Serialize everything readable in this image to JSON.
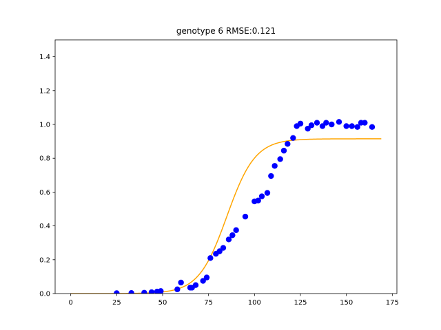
{
  "chart_data": {
    "type": "scatter",
    "title": "genotype 6 RMSE:0.121",
    "xlabel": "",
    "ylabel": "",
    "xlim": [
      -8.5,
      177.5
    ],
    "ylim": [
      0.0,
      1.5
    ],
    "x_ticks": [
      0,
      25,
      50,
      75,
      100,
      125,
      150,
      175
    ],
    "y_ticks": [
      0.0,
      0.2,
      0.4,
      0.6,
      0.8,
      1.0,
      1.2,
      1.4
    ],
    "x_tick_labels": [
      "0",
      "25",
      "50",
      "75",
      "100",
      "125",
      "150",
      "175"
    ],
    "y_tick_labels": [
      "0.0",
      "0.2",
      "0.4",
      "0.6",
      "0.8",
      "1.0",
      "1.2",
      "1.4"
    ],
    "grid": false,
    "legend": null,
    "series": [
      {
        "kind": "points",
        "color": "#0000ff",
        "points": [
          [
            25,
            0.002
          ],
          [
            33,
            0.003
          ],
          [
            40,
            0.005
          ],
          [
            44,
            0.008
          ],
          [
            47,
            0.012
          ],
          [
            49,
            0.015
          ],
          [
            58,
            0.025
          ],
          [
            60,
            0.065
          ],
          [
            65,
            0.035
          ],
          [
            66,
            0.035
          ],
          [
            68,
            0.05
          ],
          [
            72,
            0.075
          ],
          [
            74,
            0.095
          ],
          [
            76,
            0.21
          ],
          [
            79,
            0.235
          ],
          [
            81,
            0.25
          ],
          [
            83,
            0.27
          ],
          [
            86,
            0.32
          ],
          [
            88,
            0.345
          ],
          [
            90,
            0.375
          ],
          [
            95,
            0.455
          ],
          [
            100,
            0.545
          ],
          [
            102,
            0.55
          ],
          [
            104,
            0.575
          ],
          [
            107,
            0.595
          ],
          [
            109,
            0.695
          ],
          [
            111,
            0.755
          ],
          [
            114,
            0.795
          ],
          [
            116,
            0.845
          ],
          [
            118,
            0.885
          ],
          [
            121,
            0.92
          ],
          [
            123,
            0.99
          ],
          [
            125,
            1.005
          ],
          [
            129,
            0.975
          ],
          [
            131,
            0.995
          ],
          [
            134,
            1.01
          ],
          [
            137,
            0.99
          ],
          [
            139,
            1.01
          ],
          [
            142,
            1.0
          ],
          [
            146,
            1.015
          ],
          [
            150,
            0.99
          ],
          [
            153,
            0.99
          ],
          [
            156,
            0.985
          ],
          [
            158,
            1.01
          ],
          [
            160,
            1.01
          ],
          [
            164,
            0.985
          ]
        ]
      },
      {
        "kind": "curve",
        "color": "#ffa500",
        "model": "logistic",
        "x_range": [
          0,
          169
        ],
        "asymptote": 0.915,
        "midpoint": 85,
        "rate": 0.13
      }
    ]
  }
}
